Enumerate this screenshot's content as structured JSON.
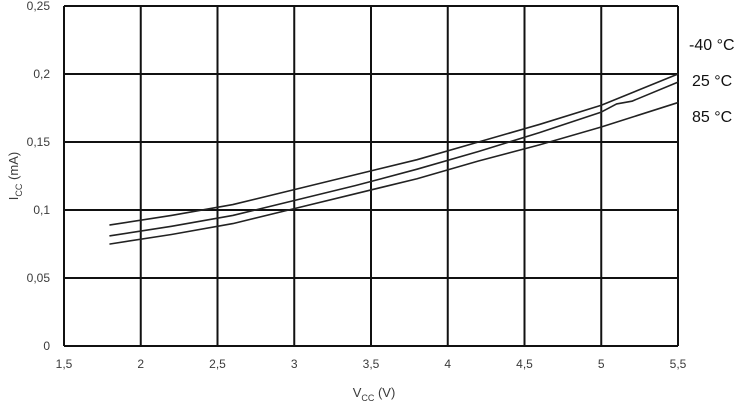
{
  "chart_data": {
    "type": "line",
    "title": "",
    "xlabel": {
      "main": "V",
      "sub": "CC",
      "suffix": " (V)"
    },
    "ylabel": {
      "main": "I",
      "sub": "CC",
      "suffix": " (mA)"
    },
    "xlim": [
      1.5,
      5.5
    ],
    "ylim": [
      0,
      0.25
    ],
    "grid": true,
    "x_ticks": [
      1.5,
      2,
      2.5,
      3,
      3.5,
      4,
      4.5,
      5,
      5.5
    ],
    "x_tick_labels": [
      "1,5",
      "2",
      "2,5",
      "3",
      "3,5",
      "4",
      "4,5",
      "5",
      "5,5"
    ],
    "y_ticks": [
      0,
      0.05,
      0.1,
      0.15,
      0.2,
      0.25
    ],
    "y_tick_labels": [
      "0",
      "0,05",
      "0,1",
      "0,15",
      "0,2",
      "0,25"
    ],
    "legend_placement": "right",
    "series": [
      {
        "name": "-40 °C",
        "points": [
          [
            1.8,
            0.089
          ],
          [
            2.2,
            0.096
          ],
          [
            2.6,
            0.104
          ],
          [
            3.0,
            0.115
          ],
          [
            3.4,
            0.126
          ],
          [
            3.8,
            0.137
          ],
          [
            4.2,
            0.15
          ],
          [
            4.6,
            0.163
          ],
          [
            5.0,
            0.177
          ],
          [
            5.5,
            0.2
          ]
        ]
      },
      {
        "name": "25 °C",
        "points": [
          [
            1.8,
            0.081
          ],
          [
            2.2,
            0.088
          ],
          [
            2.6,
            0.096
          ],
          [
            3.0,
            0.107
          ],
          [
            3.4,
            0.118
          ],
          [
            3.8,
            0.13
          ],
          [
            4.2,
            0.143
          ],
          [
            4.6,
            0.157
          ],
          [
            5.0,
            0.172
          ],
          [
            5.1,
            0.178
          ],
          [
            5.2,
            0.18
          ],
          [
            5.5,
            0.194
          ]
        ]
      },
      {
        "name": "85 °C",
        "points": [
          [
            1.8,
            0.075
          ],
          [
            2.2,
            0.082
          ],
          [
            2.6,
            0.09
          ],
          [
            3.0,
            0.101
          ],
          [
            3.4,
            0.112
          ],
          [
            3.8,
            0.123
          ],
          [
            4.2,
            0.136
          ],
          [
            4.6,
            0.148
          ],
          [
            5.0,
            0.161
          ],
          [
            5.5,
            0.179
          ]
        ]
      }
    ]
  },
  "colors": {
    "background": "#ffffff",
    "grid": "#111111",
    "series": "#222222",
    "text": "#3b3b3b"
  }
}
